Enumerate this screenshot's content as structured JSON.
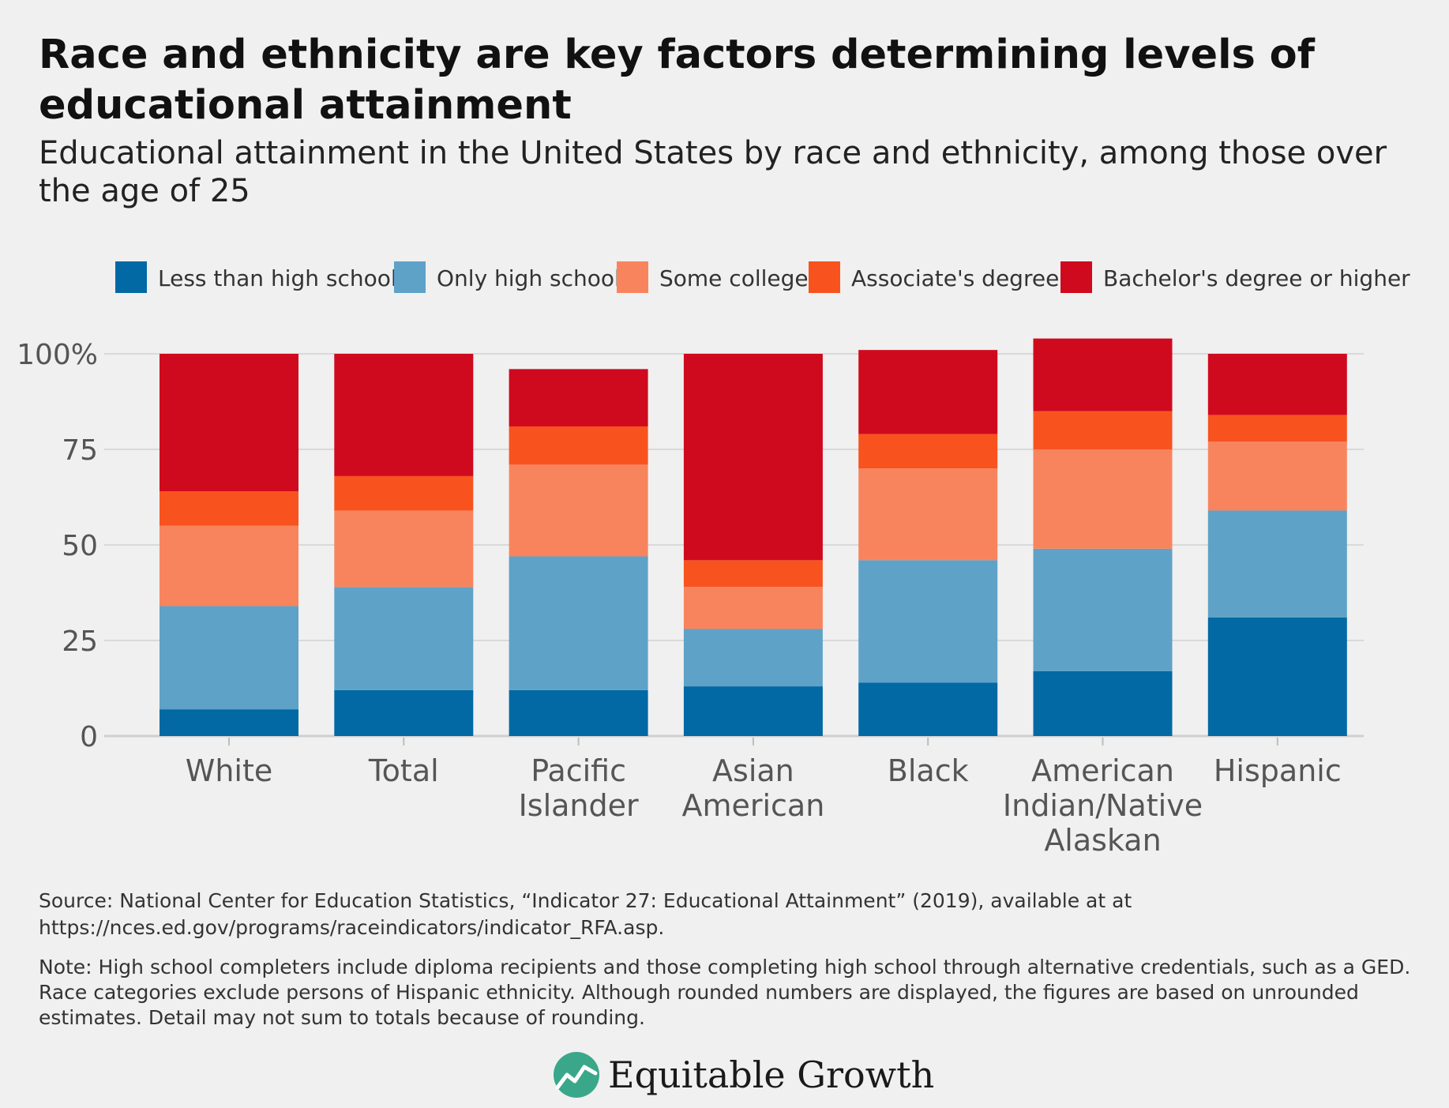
{
  "header": {
    "title": "Race and ethnicity are key factors determining levels of educational attainment",
    "subtitle": "Educational attainment in the United States by race and ethnicity, among those over the age of 25"
  },
  "footer": {
    "source": "Source: National Center for Education Statistics, “Indicator 27: Educational Attainment” (2019), available at at https://nces.ed.gov/programs/raceindicators/indicator_RFA.asp.",
    "note": "Note: High school completers include diploma recipients and those completing high school through alternative credentials, such as a GED. Race categories exclude persons of Hispanic ethnicity. Although rounded numbers are displayed, the figures are based on unrounded estimates. Detail may not sum to totals because of rounding.",
    "brand": "Equitable Growth"
  },
  "colors": {
    "background": "#f0f0f0",
    "grid": "#d9d9d9",
    "axis_text": "#555555",
    "brand_icon": "#3aa78a"
  },
  "chart_data": {
    "type": "bar",
    "stacked": true,
    "categories": [
      "White",
      "Total",
      "Pacific Islander",
      "Asian American",
      "Black",
      "American Indian/Native Alaskan",
      "Hispanic"
    ],
    "category_lines": [
      [
        "White"
      ],
      [
        "Total"
      ],
      [
        "Pacific",
        "Islander"
      ],
      [
        "Asian",
        "American"
      ],
      [
        "Black"
      ],
      [
        "American",
        "Indian/Native",
        "Alaskan"
      ],
      [
        "Hispanic"
      ]
    ],
    "series": [
      {
        "name": "Less than high school",
        "color": "#0269a4",
        "values": [
          7,
          12,
          12,
          13,
          14,
          17,
          31
        ]
      },
      {
        "name": "Only high school",
        "color": "#5ea2c8",
        "values": [
          27,
          27,
          35,
          15,
          32,
          32,
          28
        ]
      },
      {
        "name": "Some college",
        "color": "#f8845e",
        "values": [
          21,
          20,
          24,
          11,
          24,
          26,
          18
        ]
      },
      {
        "name": "Associate's degree",
        "color": "#f8531f",
        "values": [
          9,
          9,
          10,
          7,
          9,
          10,
          7
        ]
      },
      {
        "name": "Bachelor's degree or higher",
        "color": "#cf0a1e",
        "values": [
          36,
          32,
          15,
          54,
          22,
          19,
          16
        ]
      }
    ],
    "ylim": [
      0,
      105
    ],
    "yticks": [
      0,
      25,
      50,
      75,
      100
    ],
    "ytick_labels": [
      "0",
      "25",
      "50",
      "75",
      "100%"
    ],
    "grid": true,
    "legend_position": "top"
  }
}
